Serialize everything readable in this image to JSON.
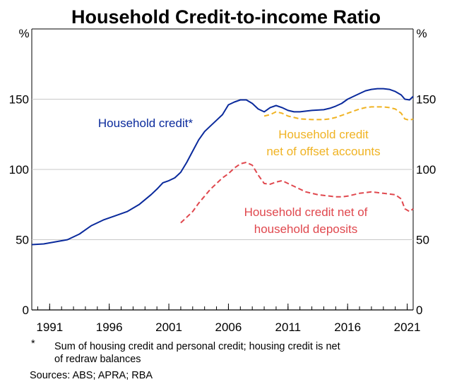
{
  "chart_data": {
    "type": "line",
    "title": "Household Credit-to-income Ratio",
    "ylabel_left": "%",
    "ylabel_right": "%",
    "ylim": [
      0,
      200
    ],
    "y_ticks": [
      0,
      50,
      100,
      150
    ],
    "xlim": [
      1989.5,
      2021.5
    ],
    "x_ticks": [
      1991,
      1996,
      2001,
      2006,
      2011,
      2016,
      2021
    ],
    "x_tick_labels": [
      "1991",
      "1996",
      "2001",
      "2006",
      "2011",
      "2016",
      "2021"
    ],
    "series": [
      {
        "name": "Household credit*",
        "label_lines": [
          "Household credit*"
        ],
        "color": "#0a2a9c",
        "dash": "solid",
        "points": [
          [
            1989.5,
            46.5
          ],
          [
            1990.5,
            47
          ],
          [
            1991.5,
            48.5
          ],
          [
            1992.5,
            50
          ],
          [
            1993.5,
            54
          ],
          [
            1994.5,
            60
          ],
          [
            1995.5,
            64
          ],
          [
            1996.5,
            67
          ],
          [
            1997.5,
            70
          ],
          [
            1998.5,
            75
          ],
          [
            1999.5,
            82
          ],
          [
            2000.0,
            86
          ],
          [
            2000.5,
            90.5
          ],
          [
            2001.0,
            92
          ],
          [
            2001.5,
            94
          ],
          [
            2002.0,
            98
          ],
          [
            2002.5,
            105
          ],
          [
            2003.0,
            113
          ],
          [
            2003.5,
            121
          ],
          [
            2004.0,
            127
          ],
          [
            2004.5,
            131
          ],
          [
            2005.0,
            135
          ],
          [
            2005.5,
            139
          ],
          [
            2006.0,
            146
          ],
          [
            2006.5,
            148
          ],
          [
            2007.0,
            149.5
          ],
          [
            2007.5,
            149.5
          ],
          [
            2008.0,
            147
          ],
          [
            2008.5,
            143
          ],
          [
            2009.0,
            141
          ],
          [
            2009.5,
            144
          ],
          [
            2010.0,
            145.5
          ],
          [
            2010.5,
            144
          ],
          [
            2011.0,
            142
          ],
          [
            2011.5,
            141
          ],
          [
            2012.0,
            141
          ],
          [
            2012.5,
            141.5
          ],
          [
            2013.0,
            142
          ],
          [
            2014.0,
            142.5
          ],
          [
            2014.5,
            143.5
          ],
          [
            2015.0,
            145
          ],
          [
            2015.5,
            147
          ],
          [
            2016.0,
            150
          ],
          [
            2016.5,
            152
          ],
          [
            2017.0,
            154
          ],
          [
            2017.5,
            156
          ],
          [
            2018.0,
            157
          ],
          [
            2018.5,
            157.5
          ],
          [
            2019.0,
            157.5
          ],
          [
            2019.5,
            157
          ],
          [
            2020.0,
            155.5
          ],
          [
            2020.5,
            153
          ],
          [
            2020.8,
            150
          ],
          [
            2021.2,
            149.5
          ],
          [
            2021.5,
            152
          ]
        ]
      },
      {
        "name": "Household credit net of offset accounts",
        "label_lines": [
          "Household credit",
          "net of offset accounts"
        ],
        "color": "#f0b323",
        "dash": "dashed",
        "points": [
          [
            2009.0,
            138
          ],
          [
            2009.5,
            139
          ],
          [
            2010.0,
            141
          ],
          [
            2010.5,
            140
          ],
          [
            2011.0,
            138
          ],
          [
            2011.5,
            137
          ],
          [
            2012.0,
            136
          ],
          [
            2013.0,
            135.5
          ],
          [
            2014.0,
            135.5
          ],
          [
            2014.5,
            136
          ],
          [
            2015.0,
            137
          ],
          [
            2015.5,
            138.5
          ],
          [
            2016.0,
            140
          ],
          [
            2016.5,
            141.5
          ],
          [
            2017.0,
            143
          ],
          [
            2017.5,
            144
          ],
          [
            2018.0,
            144.5
          ],
          [
            2018.5,
            144.5
          ],
          [
            2019.0,
            144.5
          ],
          [
            2019.5,
            144
          ],
          [
            2020.0,
            143
          ],
          [
            2020.5,
            140
          ],
          [
            2020.8,
            136
          ],
          [
            2021.2,
            135
          ],
          [
            2021.5,
            136
          ]
        ]
      },
      {
        "name": "Household credit net of household deposits",
        "label_lines": [
          "Household credit net of",
          "household deposits"
        ],
        "color": "#e0484e",
        "dash": "dashed",
        "points": [
          [
            2002.0,
            62
          ],
          [
            2002.5,
            66
          ],
          [
            2003.0,
            70
          ],
          [
            2003.5,
            76
          ],
          [
            2004.0,
            81
          ],
          [
            2004.5,
            86
          ],
          [
            2005.0,
            90
          ],
          [
            2005.5,
            94
          ],
          [
            2006.0,
            97
          ],
          [
            2006.5,
            101
          ],
          [
            2007.0,
            104
          ],
          [
            2007.5,
            105
          ],
          [
            2008.0,
            103
          ],
          [
            2008.5,
            96
          ],
          [
            2009.0,
            90
          ],
          [
            2009.5,
            89.5
          ],
          [
            2010.0,
            91
          ],
          [
            2010.5,
            92
          ],
          [
            2011.0,
            90
          ],
          [
            2011.5,
            88
          ],
          [
            2012.0,
            86
          ],
          [
            2012.5,
            84
          ],
          [
            2013.0,
            83
          ],
          [
            2013.5,
            82
          ],
          [
            2014.0,
            81.5
          ],
          [
            2014.5,
            81
          ],
          [
            2015.0,
            80.5
          ],
          [
            2015.5,
            80.5
          ],
          [
            2016.0,
            81
          ],
          [
            2016.5,
            82
          ],
          [
            2017.0,
            83
          ],
          [
            2017.5,
            83.5
          ],
          [
            2018.0,
            84
          ],
          [
            2018.5,
            83.5
          ],
          [
            2019.0,
            83
          ],
          [
            2019.5,
            82.5
          ],
          [
            2020.0,
            82
          ],
          [
            2020.5,
            79
          ],
          [
            2020.8,
            72
          ],
          [
            2021.2,
            70
          ],
          [
            2021.5,
            72
          ]
        ]
      }
    ],
    "footnote": {
      "marker": "*",
      "lines": [
        "Sum of housing credit and personal credit; housing credit is net",
        "of redraw balances"
      ]
    },
    "sources": "Sources: ABS; APRA; RBA"
  }
}
